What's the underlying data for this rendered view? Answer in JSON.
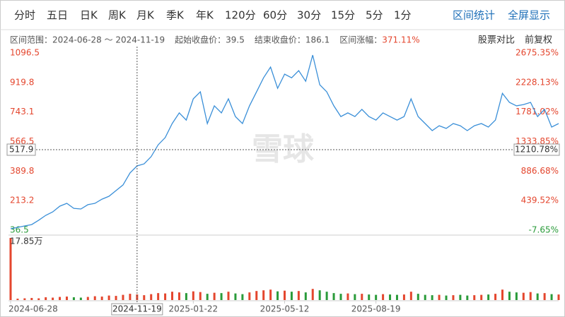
{
  "toolbar": {
    "tabs": [
      "分时",
      "五日",
      "日K",
      "周K",
      "月K",
      "季K",
      "年K",
      "120分",
      "60分",
      "30分",
      "15分",
      "5分",
      "1分"
    ],
    "actions": [
      "区间统计",
      "全屏显示"
    ]
  },
  "info": {
    "range_label": "区间范围：",
    "range": "2024-06-28 ～ 2024-11-19",
    "start_label": "起始收盘价：",
    "start": "39.5",
    "end_label": "结束收盘价：",
    "end": "186.1",
    "change_label": "区间涨幅：",
    "change": "371.11%",
    "compare": "股票对比",
    "adjust": "前复权"
  },
  "watermark": "雪球",
  "chart_data": {
    "type": "line",
    "color": "#3a8fd8",
    "start_close": 39.5,
    "values": [
      45,
      53,
      62,
      70,
      96,
      125,
      146,
      180,
      197,
      167,
      163,
      189,
      197,
      222,
      239,
      273,
      307,
      379,
      421,
      433,
      476,
      547,
      590,
      674,
      738,
      695,
      822,
      864,
      674,
      780,
      738,
      822,
      716,
      674,
      780,
      864,
      948,
      1012,
      885,
      970,
      948,
      991,
      927,
      1084,
      906,
      864,
      780,
      716,
      738,
      716,
      759,
      716,
      695,
      738,
      716,
      695,
      716,
      822,
      716,
      674,
      632,
      661,
      645,
      674,
      661,
      632,
      661,
      674,
      653,
      695,
      855,
      801,
      780,
      788,
      801,
      716,
      759,
      653,
      674
    ],
    "ylim": [
      36.5,
      1096.5
    ],
    "yticks": [
      1096.5,
      919.8,
      743.1,
      566.5,
      389.8,
      213.2,
      36.5
    ],
    "y2lim": [
      -7.65,
      2675.35
    ],
    "y2ticks": [
      {
        "value": 2675.35,
        "label": "2675.35%"
      },
      {
        "value": 2228.13,
        "label": "2228.13%"
      },
      {
        "value": 1781.02,
        "label": "1781.02%"
      },
      {
        "value": 1333.85,
        "label": "1333.85%"
      },
      {
        "value": 886.68,
        "label": "886.68%"
      },
      {
        "value": 439.52,
        "label": "439.52%"
      },
      {
        "value": -7.65,
        "label": "-7.65%"
      }
    ],
    "xticks": [
      {
        "value": 0,
        "label": "2024-06-28"
      },
      {
        "value": 26,
        "label": "2025-01-22"
      },
      {
        "value": 39,
        "label": "2025-05-12"
      },
      {
        "value": 52,
        "label": "2025-08-19"
      }
    ],
    "crosshair": {
      "x": {
        "value": 18,
        "label": "2024-11-19"
      },
      "y": 517.9,
      "y2": {
        "value": 1210.78,
        "label": "1210.78%"
      }
    },
    "volume": {
      "max_label": "17.85万",
      "ylim": [
        0,
        17.85
      ],
      "values": [
        17.85,
        0.4,
        0.5,
        0.6,
        0.5,
        0.8,
        0.7,
        0.9,
        1.0,
        0.8,
        0.7,
        0.9,
        1.1,
        1.0,
        1.3,
        1.2,
        1.5,
        1.8,
        1.6,
        1.4,
        1.7,
        2.0,
        1.9,
        2.4,
        2.2,
        2.0,
        2.5,
        2.3,
        1.8,
        2.1,
        2.0,
        2.4,
        1.9,
        1.7,
        2.2,
        2.6,
        2.8,
        3.0,
        2.5,
        2.7,
        2.4,
        2.6,
        2.2,
        3.2,
        2.8,
        2.4,
        2.0,
        1.8,
        1.9,
        1.7,
        1.8,
        1.6,
        1.5,
        1.7,
        1.6,
        1.5,
        1.6,
        2.4,
        1.8,
        1.5,
        1.4,
        1.5,
        1.3,
        1.4,
        1.5,
        1.3,
        1.4,
        1.5,
        1.6,
        1.8,
        3.0,
        2.4,
        2.2,
        2.1,
        2.3,
        1.9,
        2.0,
        1.7,
        1.6
      ]
    }
  }
}
